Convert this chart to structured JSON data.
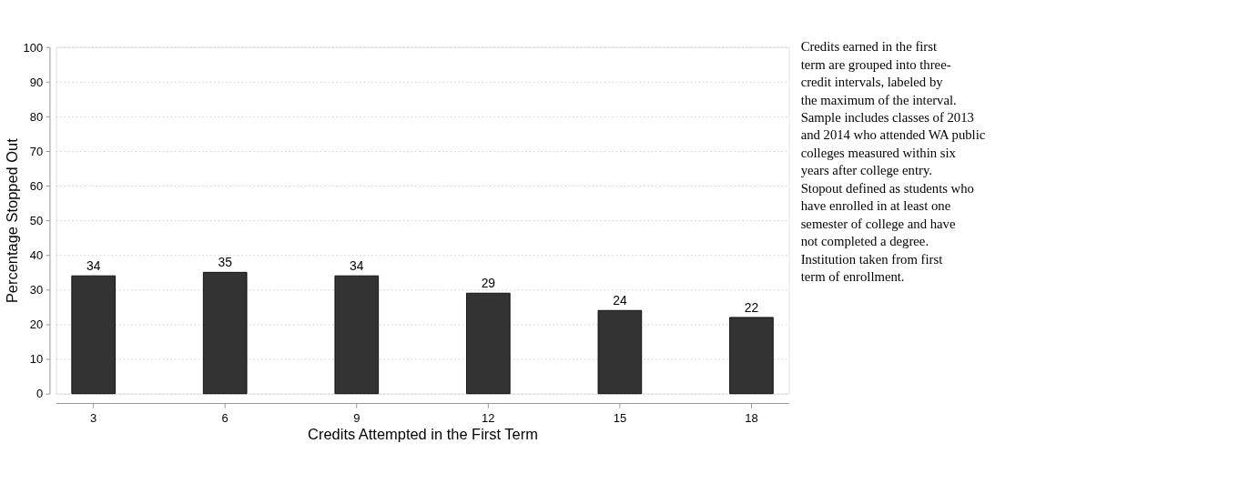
{
  "chart_data": {
    "type": "bar",
    "xlabel": "Credits Attempted in the First Term",
    "ylabel": "Percentage Stopped Out",
    "categories": [
      "3",
      "6",
      "9",
      "12",
      "15",
      "18"
    ],
    "values": [
      34,
      35,
      34,
      29,
      24,
      22
    ],
    "color": "#333333",
    "ylim": [
      0,
      100
    ],
    "yticks": [
      0,
      10,
      20,
      30,
      40,
      50,
      60,
      70,
      80,
      90,
      100
    ],
    "grid": "y",
    "data_labels": true,
    "annotations": [
      "Credits earned in the first term are grouped into three-credit intervals, labeled by the maximum of the interval.",
      "Sample includes classes of 2013 and 2014 who attended WA public colleges measured within six years after college entry.",
      "Stopout defined as students who have enrolled in at least one semester of college and have not completed a degree.",
      "Institution taken from first term of enrollment."
    ]
  }
}
